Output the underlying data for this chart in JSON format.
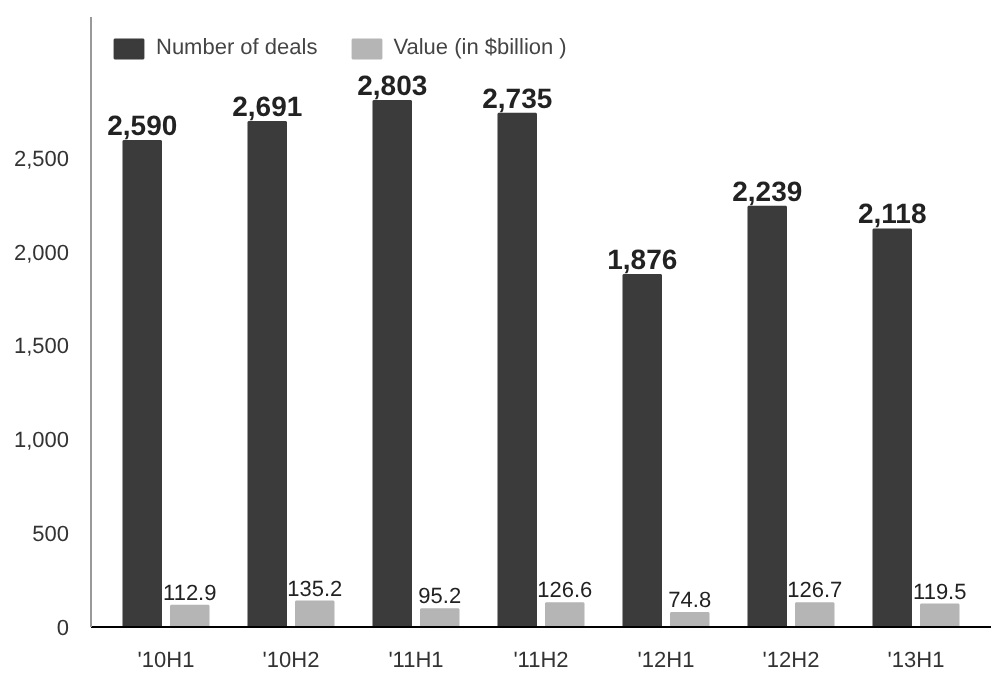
{
  "chart_data": {
    "type": "bar",
    "categories": [
      "'10H1",
      "'10H2",
      "'11H1",
      "'11H2",
      "'12H1",
      "'12H2",
      "'13H1"
    ],
    "series": [
      {
        "name": "Number of deals",
        "color": "#3b3b3b",
        "values": [
          2590,
          2691,
          2803,
          2735,
          1876,
          2239,
          2118
        ],
        "value_labels": [
          "2,590",
          "2,691",
          "2,803",
          "2,735",
          "1,876",
          "2,239",
          "2,118"
        ]
      },
      {
        "name": "Value (in $billion )",
        "color": "#b5b5b5",
        "values": [
          112.9,
          135.2,
          95.2,
          126.6,
          74.8,
          126.7,
          119.5
        ],
        "value_labels": [
          "112.9",
          "135.2",
          "95.2",
          "126.6",
          "74.8",
          "126.7",
          "119.5"
        ]
      }
    ],
    "ylim": [
      0,
      3250
    ],
    "yticks": [
      0,
      500,
      {
        "value": 1000,
        "label": "1,000"
      },
      {
        "value": 1500,
        "label": "1,500"
      },
      {
        "value": 2000,
        "label": "2,000"
      },
      {
        "value": 2500,
        "label": "2,500"
      }
    ],
    "grid": false,
    "legend": "top left"
  }
}
